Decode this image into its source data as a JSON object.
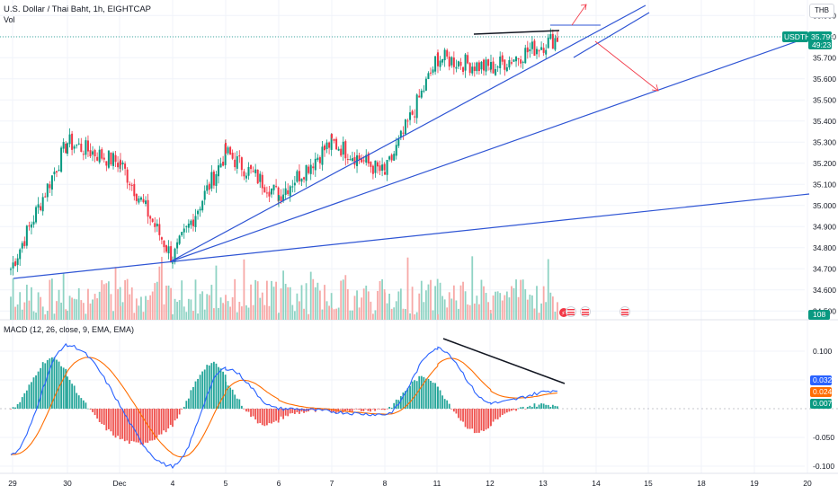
{
  "header": {
    "title": "U.S. Dollar / Thai Baht, 1h, EIGHTCAP",
    "vol_label": "Vol",
    "currency_button": "THB"
  },
  "price_panel": {
    "ticks": [
      "35.900",
      "35.800",
      "35.700",
      "35.600",
      "35.500",
      "35.400",
      "35.300",
      "35.200",
      "35.100",
      "35.000",
      "34.900",
      "34.800",
      "34.700",
      "34.600",
      "34.500"
    ],
    "symbol_badge": "USDTHB",
    "last_price": "35.799",
    "countdown": "49:23",
    "volume_badge": "108",
    "badge_color": "#089981"
  },
  "macd_panel": {
    "label": "MACD (12, 26, close, 9, EMA, EMA)",
    "ticks": [
      "0.100",
      "0.050",
      "-0.050",
      "-0.100"
    ],
    "macd_value": "0.032",
    "signal_value": "0.024",
    "hist_value": "0.007",
    "macd_color": "#2962ff",
    "signal_color": "#ff6d00",
    "hist_up_color": "#26a69a",
    "hist_down_color": "#ef5350"
  },
  "time_axis": [
    "29",
    "30",
    "Dec",
    "4",
    "5",
    "6",
    "7",
    "8",
    "11",
    "12",
    "13",
    "14",
    "15",
    "18",
    "19",
    "20"
  ],
  "chart_data": {
    "type": "candlestick",
    "symbol": "USDTHB",
    "timeframe": "1h",
    "price_range": [
      34.5,
      35.92
    ],
    "up_color": "#089981",
    "down_color": "#f23645",
    "close_anchors": [
      {
        "date": "Nov 29",
        "close": 34.7
      },
      {
        "date": "Nov 30",
        "close": 35.3
      },
      {
        "date": "Dec 1",
        "close": 35.2
      },
      {
        "date": "Dec 4",
        "close": 34.75
      },
      {
        "date": "Dec 5",
        "close": 35.25
      },
      {
        "date": "Dec 6",
        "close": 35.05
      },
      {
        "date": "Dec 7",
        "close": 35.3
      },
      {
        "date": "Dec 8",
        "close": 35.15
      },
      {
        "date": "Dec 11",
        "close": 35.7
      },
      {
        "date": "Dec 12",
        "close": 35.65
      },
      {
        "date": "Dec 13",
        "close": 35.799
      }
    ],
    "macd_anchors": [
      {
        "date": "Nov 29",
        "macd": -0.08
      },
      {
        "date": "Nov 30",
        "macd": 0.11
      },
      {
        "date": "Dec 4",
        "macd": -0.1
      },
      {
        "date": "Dec 5",
        "macd": 0.07
      },
      {
        "date": "Dec 6",
        "macd": 0.0
      },
      {
        "date": "Dec 8",
        "macd": -0.01
      },
      {
        "date": "Dec 11",
        "macd": 0.105
      },
      {
        "date": "Dec 12",
        "macd": 0.01
      },
      {
        "date": "Dec 13",
        "macd": 0.032
      }
    ]
  }
}
